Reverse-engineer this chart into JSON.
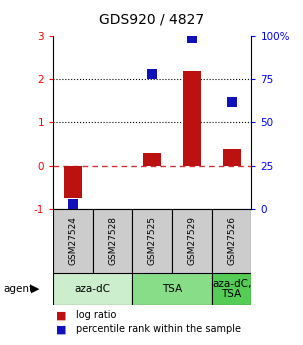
{
  "title": "GDS920 / 4827",
  "samples": [
    "GSM27524",
    "GSM27528",
    "GSM27525",
    "GSM27529",
    "GSM27526"
  ],
  "log_ratio": [
    -0.75,
    0.0,
    0.3,
    2.2,
    0.38
  ],
  "percentile": [
    3.0,
    null,
    78.0,
    99.0,
    62.0
  ],
  "agents": [
    {
      "label": "aza-dC",
      "start": 0,
      "end": 2
    },
    {
      "label": "TSA",
      "start": 2,
      "end": 4
    },
    {
      "label": "aza-dC,\nTSA",
      "start": 4,
      "end": 5
    }
  ],
  "agent_colors": [
    "#cceecc",
    "#88dd88",
    "#55cc55"
  ],
  "ylim_left": [
    -1.0,
    3.0
  ],
  "ylim_right": [
    0,
    100
  ],
  "yticks_left": [
    -1,
    0,
    1,
    2,
    3
  ],
  "yticks_right": [
    0,
    25,
    50,
    75,
    100
  ],
  "ytick_labels_right": [
    "0",
    "25",
    "50",
    "75",
    "100%"
  ],
  "bar_color": "#bb1111",
  "dot_color": "#1111bb",
  "hline_zero_color": "#cc3333",
  "bar_width": 0.45,
  "dot_size": 45,
  "sample_box_color": "#cccccc",
  "title_fontsize": 10,
  "tick_fontsize": 7.5,
  "sample_fontsize": 6.5,
  "agent_fontsize": 7.5,
  "legend_fontsize": 7
}
